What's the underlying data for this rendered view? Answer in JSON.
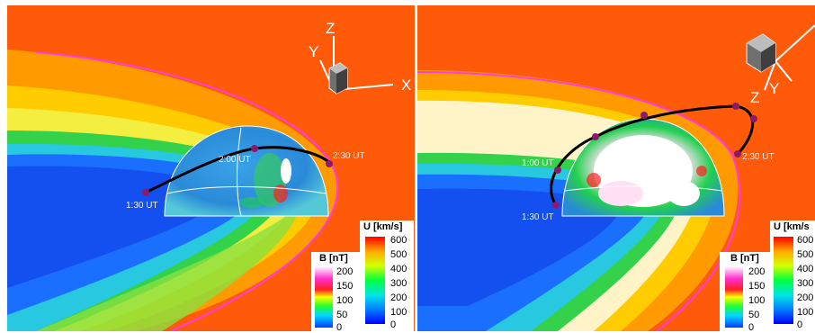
{
  "panels": [
    {
      "id": "left",
      "axis_labels": {
        "x": "X",
        "y": "Y",
        "z": "Z"
      },
      "time_labels": [
        "1:30 UT",
        "2:00 UT",
        "2:30 UT"
      ],
      "colorbar_U": {
        "title": "U [km/s]",
        "ticks": [
          "600",
          "500",
          "400",
          "300",
          "200",
          "100",
          "0"
        ]
      },
      "colorbar_B": {
        "title": "B [nT]",
        "ticks": [
          "200",
          "150",
          "100",
          "50",
          "0"
        ]
      }
    },
    {
      "id": "right",
      "axis_labels": {
        "y": "Y",
        "z": "Z"
      },
      "time_labels": [
        "1:00 UT",
        "1:30 UT",
        "2:30 UT"
      ],
      "colorbar_U": {
        "title": "U [km/s",
        "ticks": [
          "600",
          "500",
          "400",
          "300",
          "200",
          "100",
          "0"
        ]
      },
      "colorbar_B": {
        "title": "B [nT]",
        "ticks": [
          "200",
          "150",
          "100",
          "50",
          "0"
        ]
      }
    }
  ],
  "colors": {
    "solar_wind": "#ff5a0a",
    "magnetosheath_high": "#ffaa00",
    "magnetosheath_mid": "#ffe000",
    "boundary_green": "#33d24a",
    "magnetosphere": "#1a6fff",
    "magnetopause_line": "#ff3ddc",
    "orbit": "#000000",
    "spacecraft_marker": "#8a1a6a"
  }
}
